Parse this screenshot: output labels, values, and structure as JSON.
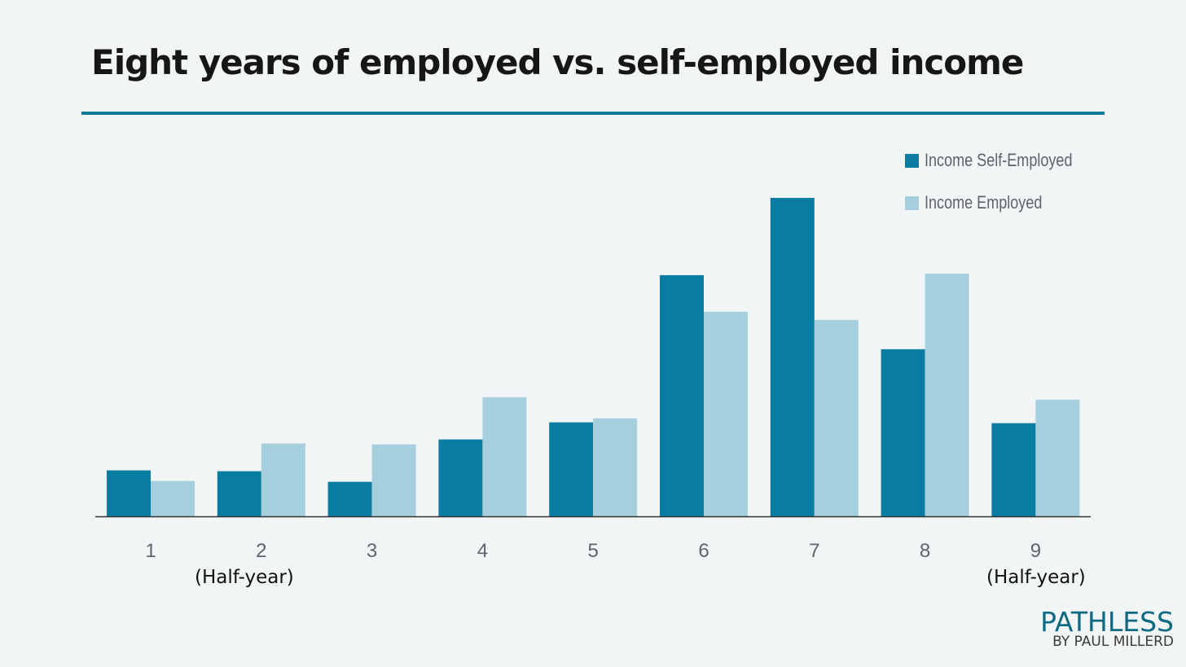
{
  "title": "Eight years of employed vs. self-employed income",
  "colors": {
    "accent": "#0d7a9e",
    "self_employed": "#097ca1",
    "employed": "#a5cfdd",
    "background": "#f1f5f5"
  },
  "chart_data": {
    "type": "bar",
    "categories": [
      "1",
      "2",
      "3",
      "4",
      "5",
      "6",
      "7",
      "8",
      "9"
    ],
    "category_notes": {
      "2": "(Half-year)",
      "9": "(Half-year)"
    },
    "series": [
      {
        "name": "Income Self-Employed",
        "values": [
          57,
          56,
          43,
          95,
          116,
          297,
          392,
          206,
          115
        ]
      },
      {
        "name": "Income Employed",
        "values": [
          44,
          90,
          89,
          147,
          121,
          252,
          242,
          299,
          144
        ]
      }
    ],
    "ylim": [
      0,
      420
    ],
    "y_axis_visible": false,
    "grid": false,
    "legend_position": "top-right"
  },
  "brand": {
    "name": "PATHLESS",
    "byline": "BY PAUL MILLERD"
  }
}
